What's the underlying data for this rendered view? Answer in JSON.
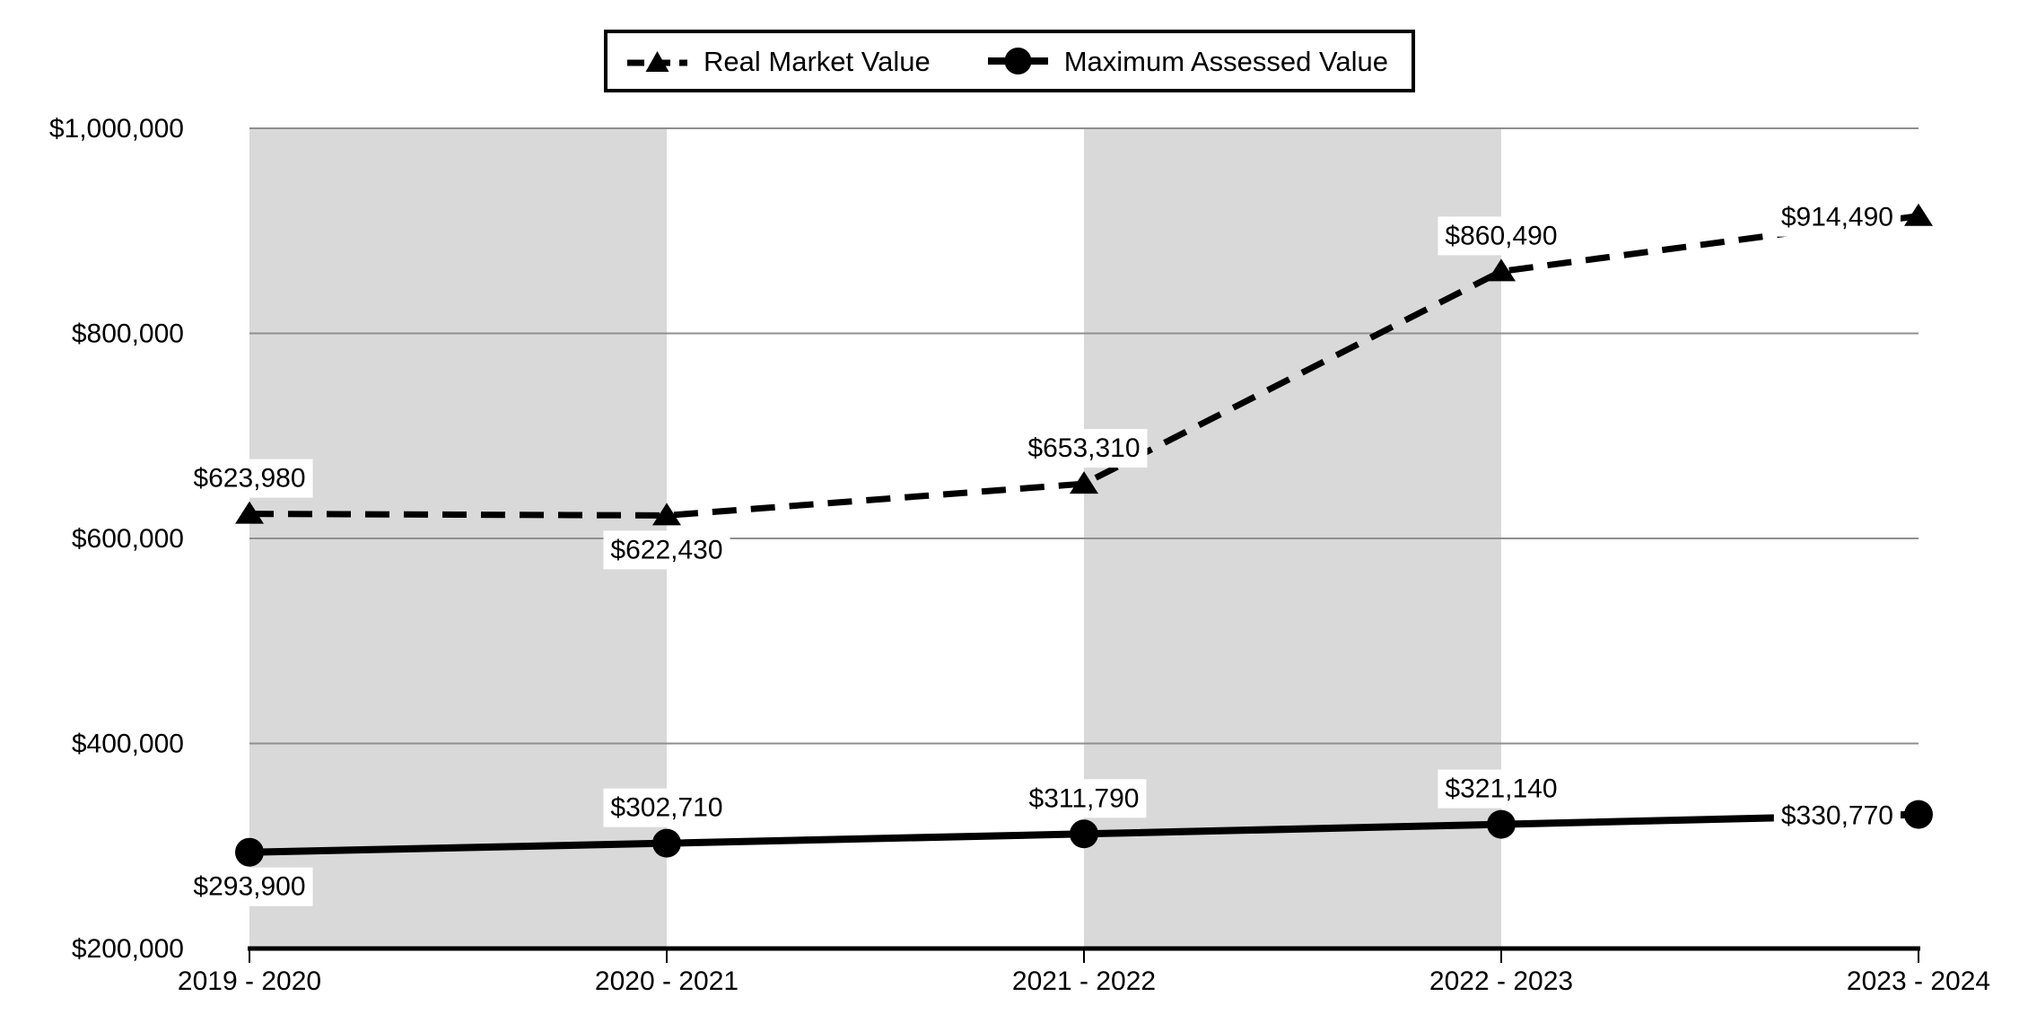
{
  "chart_data": {
    "type": "line",
    "title": "",
    "xlabel": "",
    "ylabel": "",
    "categories": [
      "2019 - 2020",
      "2020 - 2021",
      "2021 - 2022",
      "2022 - 2023",
      "2023 - 2024"
    ],
    "series": [
      {
        "name": "Real Market Value",
        "line_style": "dashed",
        "marker": "triangle",
        "values": [
          623980,
          622430,
          653310,
          860490,
          914490
        ],
        "data_labels": [
          "$623,980",
          "$622,430",
          "$653,310",
          "$860,490",
          "$914,490"
        ],
        "label_positions": [
          "above",
          "below",
          "above",
          "above",
          "left"
        ]
      },
      {
        "name": "Maximum Assessed Value",
        "line_style": "solid",
        "marker": "circle",
        "values": [
          293900,
          302710,
          311790,
          321140,
          330770
        ],
        "data_labels": [
          "$293,900",
          "$302,710",
          "$311,790",
          "$321,140",
          "$330,770"
        ],
        "label_positions": [
          "below",
          "above",
          "above",
          "above",
          "left"
        ]
      }
    ],
    "ylim": [
      200000,
      1000000
    ],
    "y_tick_interval": 200000,
    "y_tick_labels": [
      "$200,000",
      "$400,000",
      "$600,000",
      "$800,000",
      "$1,000,000"
    ],
    "grid": true,
    "legend_position": "top-center",
    "plot_bands": {
      "description": "alternating gray vertical bands between category positions",
      "gray_spans": [
        [
          0,
          1
        ],
        [
          2,
          3
        ]
      ]
    }
  },
  "colors": {
    "background": "#ffffff",
    "band": "#d9d9d9",
    "gridline": "#8f8f8f",
    "axis": "#000000",
    "series_line": "#000000",
    "data_label_bg": "#ffffff",
    "text": "#000000"
  }
}
